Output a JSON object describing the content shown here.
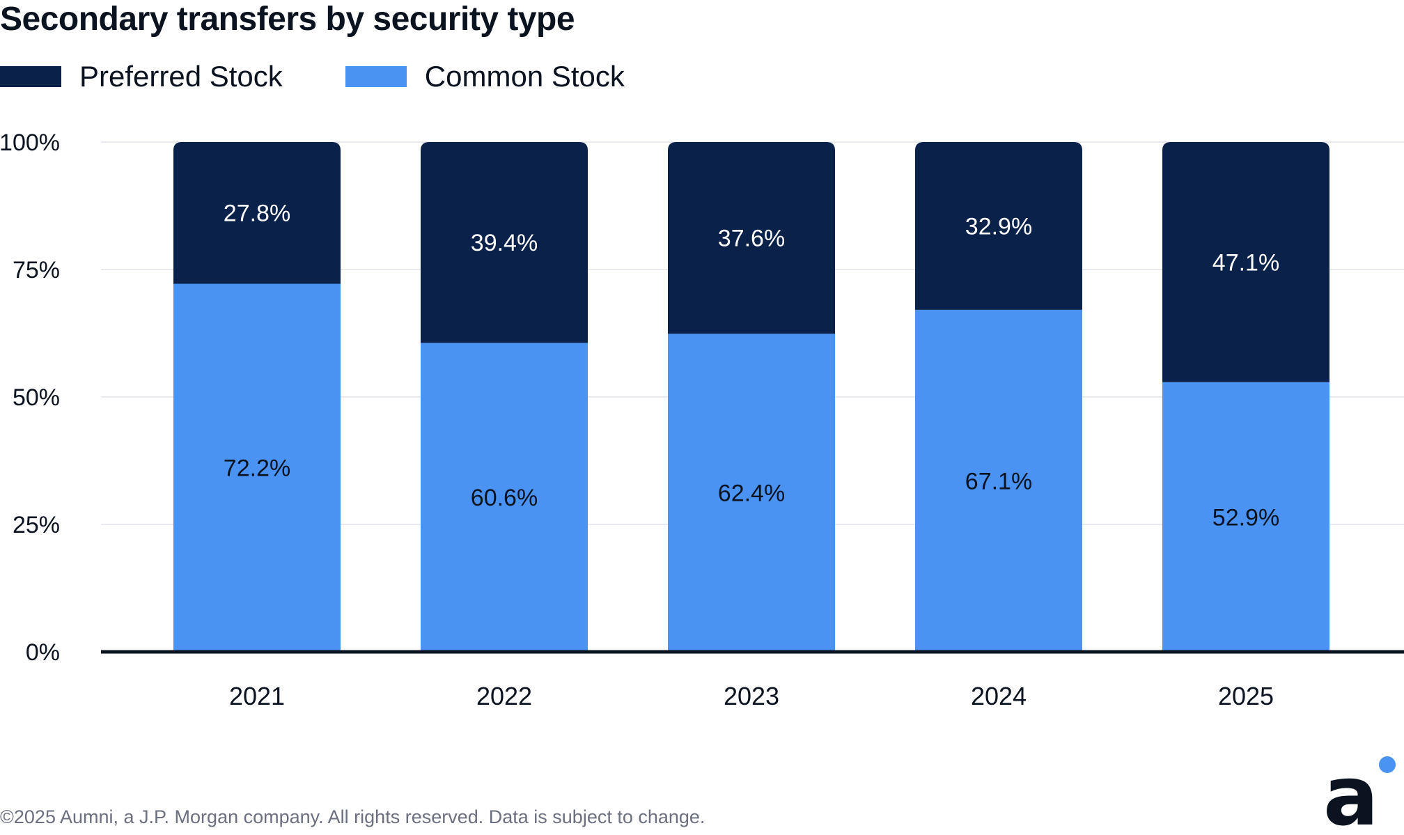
{
  "title": "Secondary transfers by security type",
  "legend": [
    {
      "label": "Preferred Stock",
      "color": "#0a2149"
    },
    {
      "label": "Common Stock",
      "color": "#4a93f3"
    }
  ],
  "footer": "©2025 Aumni, a J.P. Morgan company. All rights reserved. Data is subject to change.",
  "logo": {
    "icon": "aumni-logo-icon",
    "letter": "a",
    "dot_color": "#4a93f3"
  },
  "chart_data": {
    "type": "bar",
    "stacked": true,
    "title": "Secondary transfers by security type",
    "xlabel": "",
    "ylabel": "",
    "ylim": [
      0,
      100
    ],
    "yticks": [
      "0%",
      "25%",
      "50%",
      "75%",
      "100%"
    ],
    "ytick_values": [
      0,
      25,
      50,
      75,
      100
    ],
    "grid": true,
    "legend_position": "top-left",
    "categories": [
      "2021",
      "2022",
      "2023",
      "2024",
      "2025"
    ],
    "series": [
      {
        "name": "Common Stock",
        "color": "#4a93f3",
        "label_color": "#0b1220",
        "values": [
          72.2,
          60.6,
          62.4,
          67.1,
          52.9
        ],
        "labels": [
          "72.2%",
          "60.6%",
          "62.4%",
          "67.1%",
          "52.9%"
        ]
      },
      {
        "name": "Preferred Stock",
        "color": "#0a2149",
        "label_color": "#ffffff",
        "values": [
          27.8,
          39.4,
          37.6,
          32.9,
          47.1
        ],
        "labels": [
          "27.8%",
          "39.4%",
          "37.6%",
          "32.9%",
          "47.1%"
        ]
      }
    ]
  }
}
